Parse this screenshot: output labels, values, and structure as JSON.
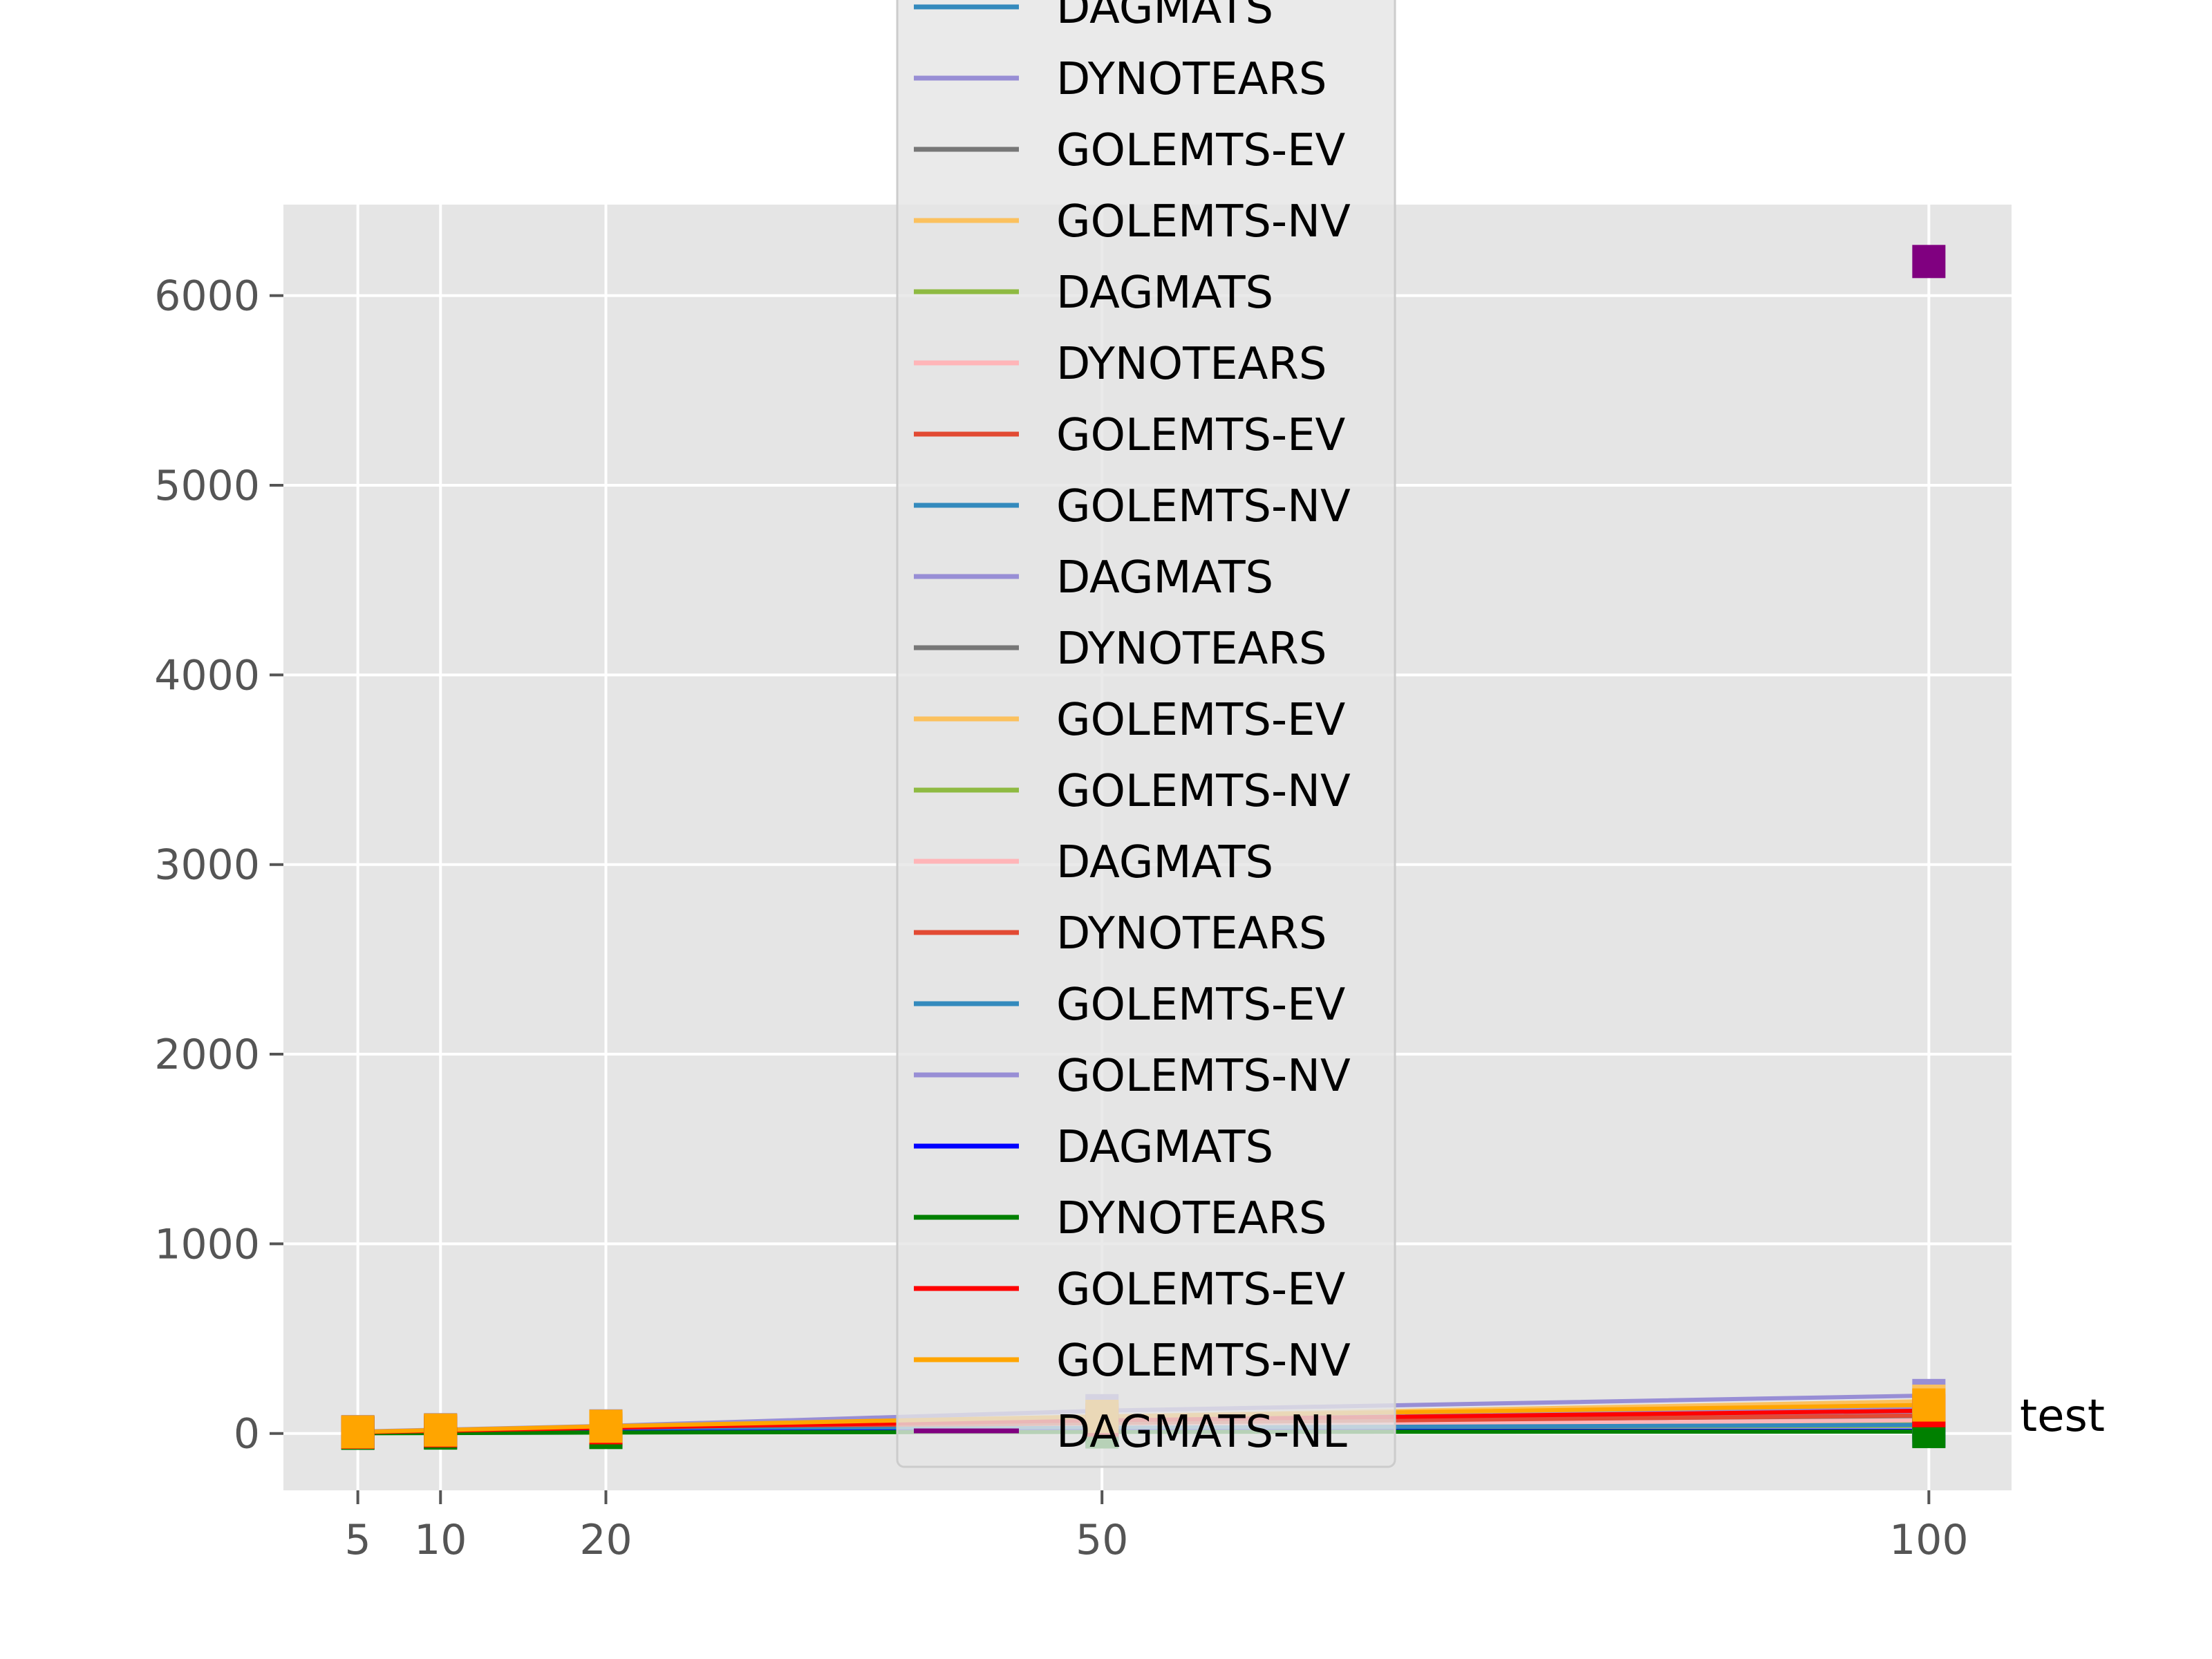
{
  "chart_data": {
    "type": "line",
    "title": "",
    "xlabel": "",
    "ylabel": "",
    "x": [
      5,
      10,
      20,
      50,
      100
    ],
    "x_ticks": [
      "5",
      "10",
      "20",
      "50",
      "100"
    ],
    "y_ticks": [
      "0",
      "1000",
      "2000",
      "3000",
      "4000",
      "5000",
      "6000"
    ],
    "xlim": [
      0.5,
      105
    ],
    "ylim": [
      -300,
      6480
    ],
    "grid": true,
    "background": "#e5e5e5",
    "legend_position": "top-center",
    "annotation": "test",
    "series": [
      {
        "name": "DAGMATS",
        "color": "#348abd",
        "values": [
          5,
          12,
          30,
          50,
          60
        ]
      },
      {
        "name": "DYNOTEARS",
        "color": "#988ed5",
        "values": [
          10,
          20,
          40,
          120,
          200
        ]
      },
      {
        "name": "GOLEMTS-EV",
        "color": "#777777",
        "values": [
          4,
          10,
          20,
          40,
          60
        ]
      },
      {
        "name": "GOLEMTS-NV",
        "color": "#fbc15e",
        "values": [
          8,
          16,
          35,
          90,
          170
        ]
      },
      {
        "name": "DAGMATS",
        "color": "#8eba42",
        "values": [
          3,
          8,
          15,
          30,
          40
        ]
      },
      {
        "name": "DYNOTEARS",
        "color": "#ffb5b8",
        "values": [
          6,
          14,
          28,
          60,
          100
        ]
      },
      {
        "name": "GOLEMTS-EV",
        "color": "#e24a33",
        "values": [
          5,
          12,
          25,
          55,
          90
        ]
      },
      {
        "name": "GOLEMTS-NV",
        "color": "#348abd",
        "values": [
          4,
          10,
          22,
          45,
          70
        ]
      },
      {
        "name": "DAGMATS",
        "color": "#988ed5",
        "values": [
          6,
          13,
          28,
          70,
          110
        ]
      },
      {
        "name": "DYNOTEARS",
        "color": "#777777",
        "values": [
          5,
          11,
          24,
          50,
          80
        ]
      },
      {
        "name": "GOLEMTS-EV",
        "color": "#fbc15e",
        "values": [
          7,
          15,
          32,
          80,
          150
        ]
      },
      {
        "name": "GOLEMTS-NV",
        "color": "#8eba42",
        "values": [
          3,
          9,
          18,
          35,
          55
        ]
      },
      {
        "name": "DAGMATS",
        "color": "#ffb5b8",
        "values": [
          4,
          10,
          20,
          40,
          70
        ]
      },
      {
        "name": "DYNOTEARS",
        "color": "#e24a33",
        "values": [
          5,
          12,
          26,
          55,
          95
        ]
      },
      {
        "name": "GOLEMTS-EV",
        "color": "#348abd",
        "values": [
          3,
          8,
          16,
          30,
          45
        ]
      },
      {
        "name": "GOLEMTS-NV",
        "color": "#988ed5",
        "values": [
          6,
          14,
          30,
          75,
          130
        ]
      },
      {
        "name": "DAGMATS",
        "color": "#0000ff",
        "values": [
          2,
          4,
          8,
          12,
          15
        ]
      },
      {
        "name": "DYNOTEARS",
        "color": "#008000",
        "values": [
          1,
          2,
          5,
          8,
          10
        ]
      },
      {
        "name": "GOLEMTS-EV",
        "color": "#ff0000",
        "values": [
          6,
          14,
          30,
          70,
          120
        ]
      },
      {
        "name": "GOLEMTS-NV",
        "color": "#ffa500",
        "values": [
          8,
          18,
          38,
          90,
          150
        ]
      },
      {
        "name": "DAGMATS-NL",
        "color": "#800080",
        "values": [
          null,
          null,
          null,
          null,
          6180
        ]
      }
    ]
  }
}
